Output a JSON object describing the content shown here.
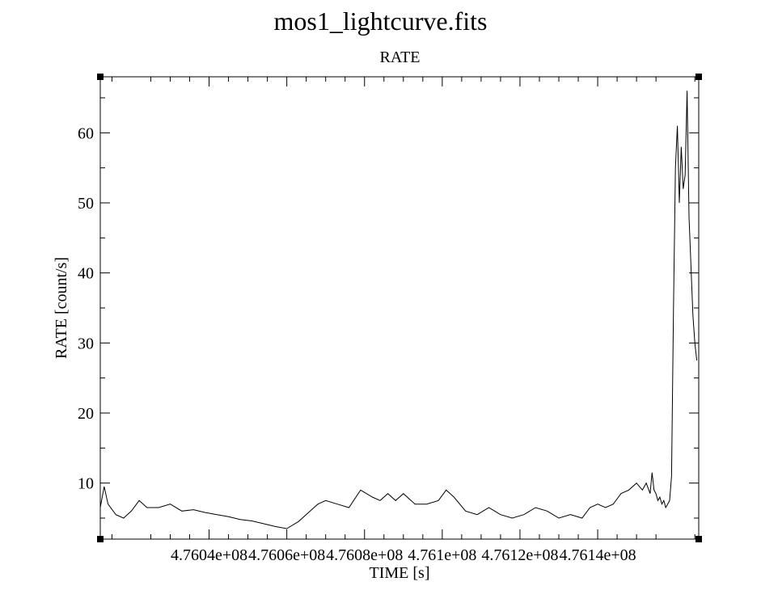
{
  "chart_data": {
    "type": "line",
    "title": "mos1_lightcurve.fits",
    "subtitle": "RATE",
    "xlabel": "TIME [s]",
    "ylabel": "RATE [count/s]",
    "xlim": [
      476012000,
      476166000
    ],
    "ylim": [
      2,
      68
    ],
    "x_ticks": [
      476040000,
      476060000,
      476080000,
      476100000,
      476120000,
      476140000
    ],
    "x_tick_labels": [
      "4.7604e+08",
      "4.7606e+08",
      "4.7608e+08",
      "4.761e+08",
      "4.7612e+08",
      "4.7614e+08"
    ],
    "y_ticks": [
      10,
      20,
      30,
      40,
      50,
      60
    ],
    "y_tick_labels": [
      "10",
      "20",
      "30",
      "40",
      "50",
      "60"
    ],
    "grid": false,
    "legend": "none",
    "series": [
      {
        "color": "#000000",
        "x": [
          476012000,
          476013000,
          476014000,
          476016000,
          476018000,
          476020000,
          476022000,
          476024000,
          476027000,
          476030000,
          476033000,
          476036000,
          476039000,
          476042000,
          476045000,
          476048000,
          476051000,
          476054000,
          476057000,
          476060000,
          476063000,
          476066000,
          476068000,
          476070000,
          476073000,
          476076000,
          476079000,
          476082000,
          476084000,
          476086000,
          476088000,
          476090000,
          476093000,
          476096000,
          476099000,
          476101000,
          476103000,
          476106000,
          476109000,
          476112000,
          476115000,
          476118000,
          476121000,
          476124000,
          476127000,
          476130000,
          476133000,
          476136000,
          476138000,
          476140000,
          476142000,
          476144000,
          476146000,
          476148000,
          476150000,
          476151500,
          476152500,
          476153500,
          476154000,
          476154500,
          476155000,
          476155500,
          476156000,
          476156500,
          476157000,
          476157500,
          476158000,
          476158500,
          476159000,
          476159500,
          476160000,
          476160500,
          476161000,
          476161500,
          476162000,
          476162500,
          476163000,
          476163500,
          476164000,
          476164500,
          476165000,
          476165500
        ],
        "y": [
          6.5,
          9.5,
          7.0,
          5.5,
          5.0,
          6.0,
          7.5,
          6.5,
          6.5,
          7.0,
          6.0,
          6.2,
          5.8,
          5.5,
          5.2,
          4.8,
          4.6,
          4.2,
          3.8,
          3.5,
          4.5,
          6.0,
          7.0,
          7.5,
          7.0,
          6.5,
          9.0,
          8.0,
          7.5,
          8.5,
          7.5,
          8.5,
          7.0,
          7.0,
          7.5,
          9.0,
          8.0,
          6.0,
          5.5,
          6.5,
          5.5,
          5.0,
          5.5,
          6.5,
          6.0,
          5.0,
          5.5,
          5.0,
          6.5,
          7.0,
          6.5,
          7.0,
          8.5,
          9.0,
          10.0,
          9.0,
          10.0,
          8.5,
          11.5,
          9.0,
          8.5,
          7.5,
          8.0,
          7.0,
          7.5,
          6.5,
          7.0,
          7.5,
          11.0,
          35.0,
          55.0,
          61.0,
          50.0,
          58.0,
          52.0,
          54.0,
          66.0,
          48.0,
          41.0,
          34.0,
          30.0,
          27.5
        ]
      }
    ]
  }
}
